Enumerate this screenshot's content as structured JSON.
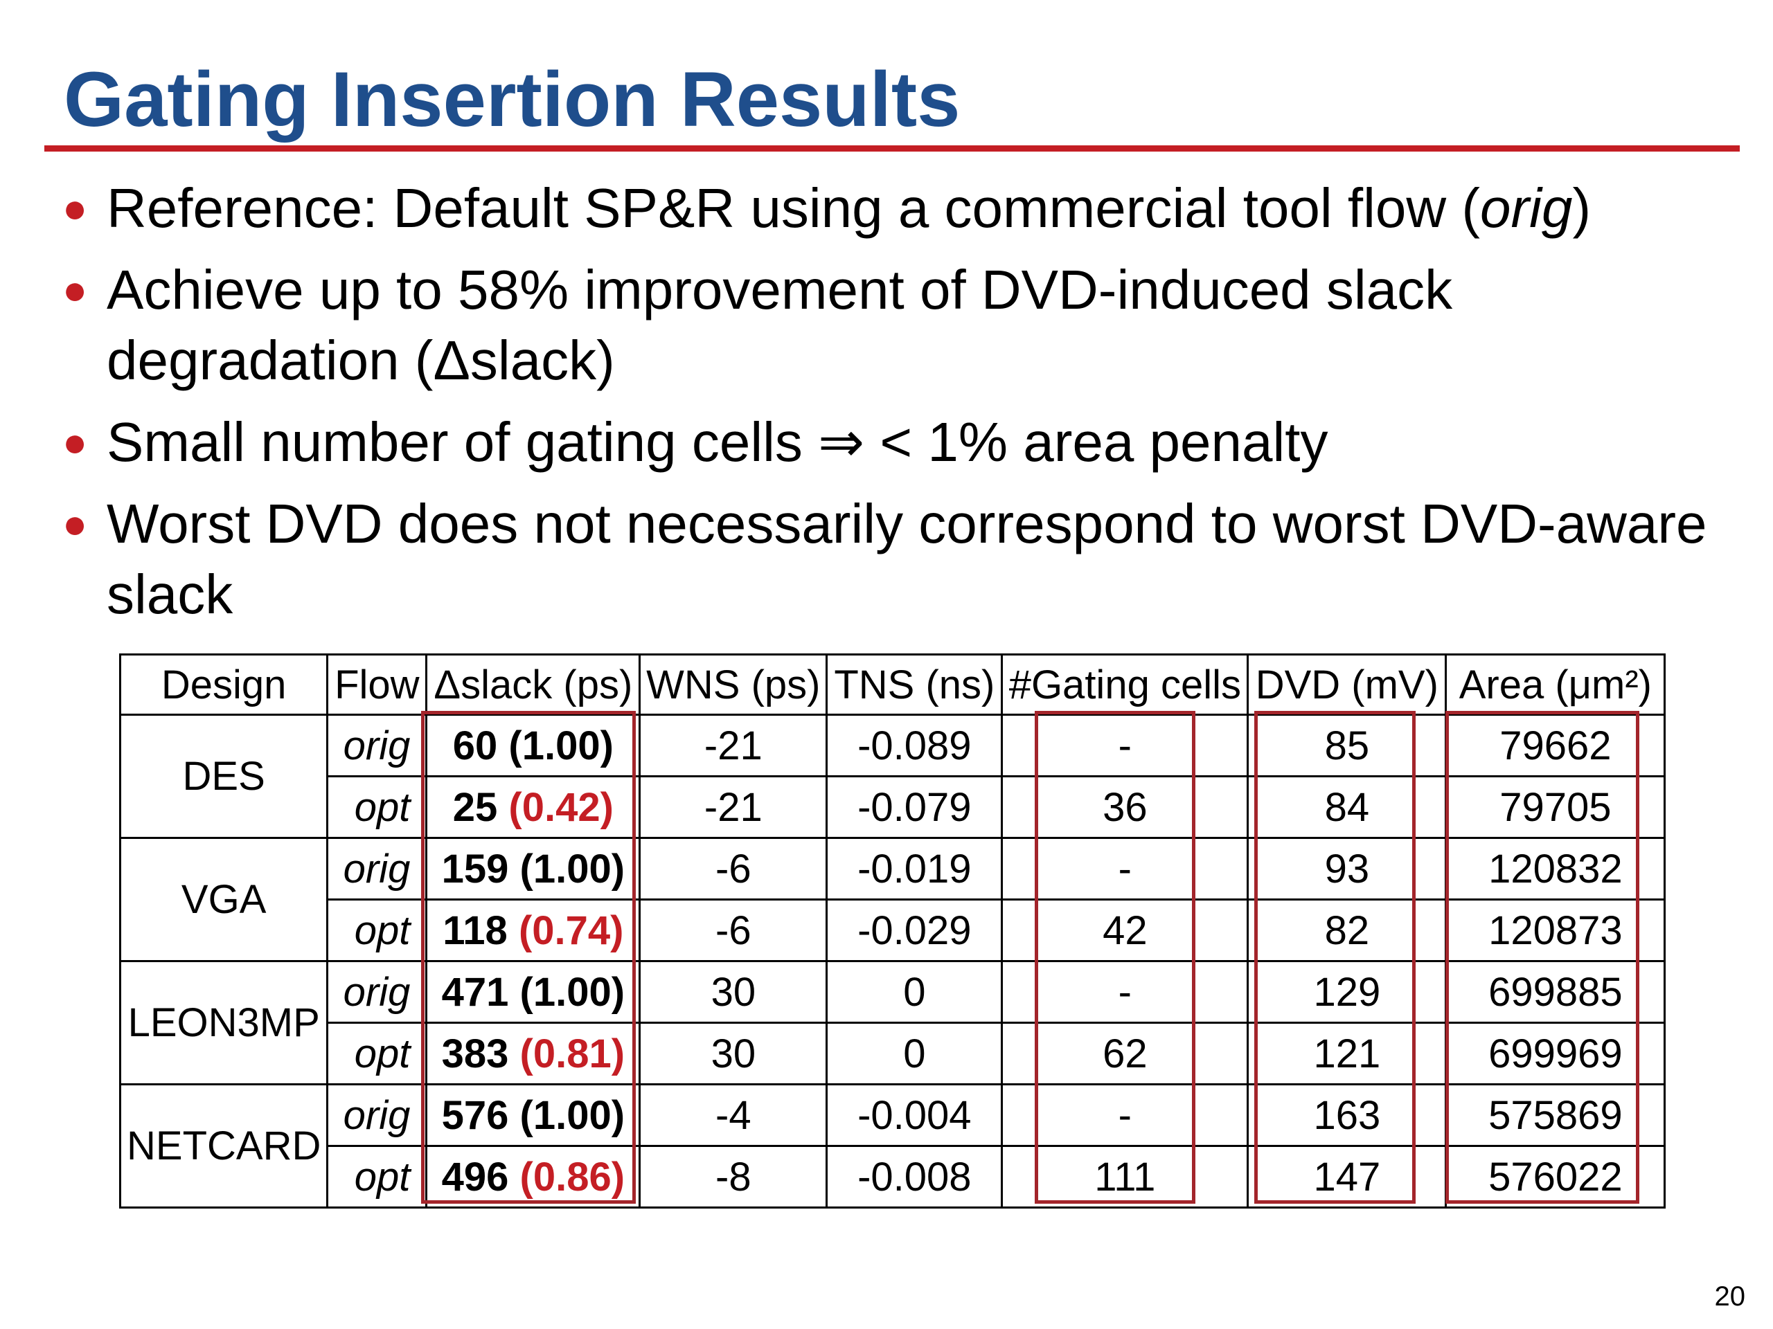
{
  "title": "Gating Insertion Results",
  "bullets": [
    {
      "before": "Reference: Default SP&R using a commercial tool flow (",
      "em": "orig",
      "after": ")"
    },
    {
      "text": "Achieve up to 58% improvement of DVD-induced slack degradation (Δslack)"
    },
    {
      "text": "Small number of gating cells ⇒ < 1% area penalty"
    },
    {
      "text": "Worst DVD does not necessarily correspond to worst DVD-aware slack"
    }
  ],
  "table": {
    "headers": [
      "Design",
      "Flow",
      "Δslack (ps)",
      "WNS (ps)",
      "TNS (ns)",
      "#Gating cells",
      "DVD (mV)",
      "Area (μm²)"
    ],
    "rows": [
      {
        "design": "DES",
        "flow": "orig",
        "slack": "60",
        "ratio": "(1.00)",
        "wns": "-21",
        "tns": "-0.089",
        "gating": "-",
        "dvd": "85",
        "area": "79662"
      },
      {
        "flow": "opt",
        "slack": "25",
        "ratio": "(0.42)",
        "wns": "-21",
        "tns": "-0.079",
        "gating": "36",
        "dvd": "84",
        "area": "79705"
      },
      {
        "design": "VGA",
        "flow": "orig",
        "slack": "159",
        "ratio": "(1.00)",
        "wns": "-6",
        "tns": "-0.019",
        "gating": "-",
        "dvd": "93",
        "area": "120832"
      },
      {
        "flow": "opt",
        "slack": "118",
        "ratio": "(0.74)",
        "wns": "-6",
        "tns": "-0.029",
        "gating": "42",
        "dvd": "82",
        "area": "120873"
      },
      {
        "design": "LEON3MP",
        "flow": "orig",
        "slack": "471",
        "ratio": "(1.00)",
        "wns": "30",
        "tns": "0",
        "gating": "-",
        "dvd": "129",
        "area": "699885"
      },
      {
        "flow": "opt",
        "slack": "383",
        "ratio": "(0.81)",
        "wns": "30",
        "tns": "0",
        "gating": "62",
        "dvd": "121",
        "area": "699969"
      },
      {
        "design": "NETCARD",
        "flow": "orig",
        "slack": "576",
        "ratio": "(1.00)",
        "wns": "-4",
        "tns": "-0.004",
        "gating": "-",
        "dvd": "163",
        "area": "575869"
      },
      {
        "flow": "opt",
        "slack": "496",
        "ratio": "(0.86)",
        "wns": "-8",
        "tns": "-0.008",
        "gating": "111",
        "dvd": "147",
        "area": "576022"
      }
    ]
  },
  "colors": {
    "title": "#1f4e8c",
    "accent": "#c41e24",
    "highlight_box": "#a3252b"
  },
  "page_number": "20"
}
